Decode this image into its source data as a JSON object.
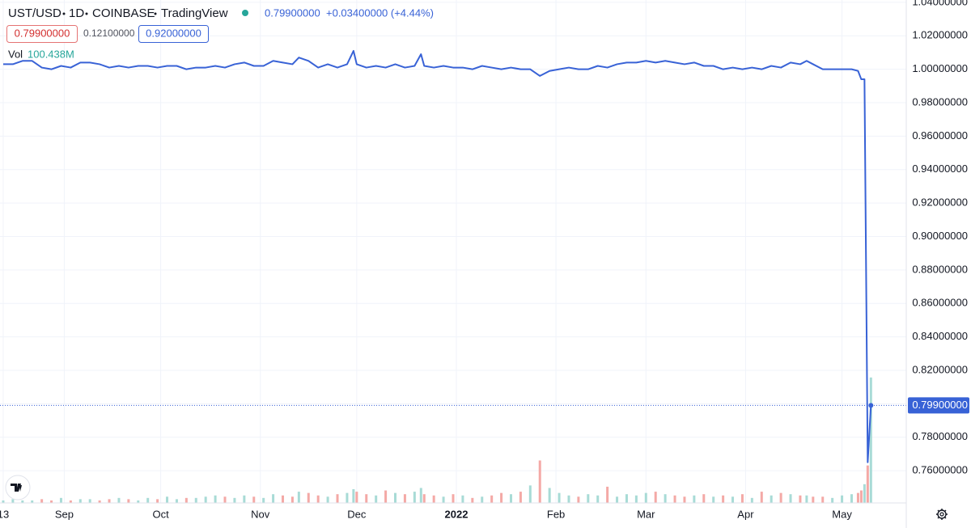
{
  "chart_data": {
    "type": "line",
    "interval": "1D",
    "exchange": "COINBASE",
    "source": "TradingView",
    "last_price": "0.79900000",
    "change": "+0.03400000 (+4.44%)",
    "low_label": "0.79900000",
    "range_label": "0.12100000",
    "high_label": "0.92000000",
    "volume_label": "100.438M",
    "price_line": {
      "value": 0.799,
      "label": "0.79900000"
    },
    "xlim": [
      -1,
      281
    ],
    "xticks": [
      {
        "value": 0,
        "label": "13"
      },
      {
        "value": 19,
        "label": "Sep"
      },
      {
        "value": 49,
        "label": "Oct"
      },
      {
        "value": 80,
        "label": "Nov"
      },
      {
        "value": 110,
        "label": "Dec"
      },
      {
        "value": 141,
        "label": "2022"
      },
      {
        "value": 172,
        "label": "Feb"
      },
      {
        "value": 200,
        "label": "Mar"
      },
      {
        "value": 231,
        "label": "Apr"
      },
      {
        "value": 261,
        "label": "May"
      }
    ],
    "ylim": [
      0.7407,
      1.0414
    ],
    "yticks": [
      {
        "value": 0.76,
        "label": "0.76000000"
      },
      {
        "value": 0.78,
        "label": "0.78000000"
      },
      {
        "value": 0.8,
        "label": "0.80000000"
      },
      {
        "value": 0.82,
        "label": "0.82000000"
      },
      {
        "value": 0.84,
        "label": "0.84000000"
      },
      {
        "value": 0.86,
        "label": "0.86000000"
      },
      {
        "value": 0.88,
        "label": "0.88000000"
      },
      {
        "value": 0.9,
        "label": "0.90000000"
      },
      {
        "value": 0.92,
        "label": "0.92000000"
      },
      {
        "value": 0.94,
        "label": "0.94000000"
      },
      {
        "value": 0.96,
        "label": "0.96000000"
      },
      {
        "value": 0.98,
        "label": "0.98000000"
      },
      {
        "value": 1.0,
        "label": "1.00000000"
      },
      {
        "value": 1.02,
        "label": "1.02000000"
      },
      {
        "value": 1.04,
        "label": "1.04000000"
      }
    ],
    "volume_ylim": [
      0,
      134000000
    ],
    "grid": true,
    "up_color": "#a8dbd6",
    "down_color": "#f4a9a6",
    "x": [
      0,
      3,
      6,
      9,
      12,
      15,
      18,
      21,
      24,
      27,
      30,
      33,
      36,
      39,
      42,
      45,
      48,
      51,
      54,
      57,
      60,
      63,
      66,
      69,
      72,
      75,
      78,
      81,
      84,
      87,
      90,
      92,
      95,
      98,
      101,
      104,
      107,
      109,
      110,
      113,
      116,
      119,
      122,
      125,
      128,
      130,
      131,
      134,
      137,
      140,
      143,
      146,
      149,
      152,
      155,
      158,
      161,
      164,
      167,
      170,
      173,
      176,
      179,
      182,
      185,
      188,
      191,
      194,
      197,
      200,
      203,
      206,
      209,
      212,
      215,
      218,
      221,
      224,
      227,
      230,
      233,
      236,
      239,
      242,
      245,
      248,
      250,
      252,
      255,
      258,
      261,
      264,
      266,
      267,
      268,
      269,
      270
    ],
    "series": [
      {
        "name": "UST/USD",
        "color": "#3862d6",
        "values": [
          1.003,
          1.003,
          1.005,
          1.005,
          1.001,
          1.0,
          1.002,
          1.001,
          1.004,
          1.004,
          1.003,
          1.001,
          1.002,
          1.001,
          1.002,
          1.002,
          1.001,
          1.002,
          1.002,
          1.0,
          1.001,
          1.001,
          1.002,
          1.001,
          1.003,
          1.004,
          1.002,
          1.002,
          1.005,
          1.004,
          1.003,
          1.007,
          1.005,
          1.001,
          1.003,
          1.001,
          1.003,
          1.011,
          1.003,
          1.001,
          1.002,
          1.001,
          1.003,
          1.001,
          1.002,
          1.009,
          1.002,
          1.001,
          1.002,
          1.001,
          1.001,
          1.0,
          1.002,
          1.001,
          1.0,
          1.001,
          1.0,
          1.0,
          0.996,
          0.999,
          1.0,
          1.001,
          1.0,
          1.0,
          1.002,
          1.001,
          1.003,
          1.004,
          1.004,
          1.005,
          1.004,
          1.005,
          1.004,
          1.003,
          1.004,
          1.002,
          1.002,
          1.0,
          1.001,
          1.0,
          1.001,
          1.0,
          1.002,
          1.001,
          1.004,
          1.003,
          1.005,
          1.003,
          1.0,
          1.0,
          1.0,
          1.0,
          0.999,
          0.994,
          0.994,
          0.765,
          0.799
        ]
      },
      {
        "name": "Vol",
        "color": "#26a69a",
        "values": [
          2000000,
          3000000,
          2000000,
          2000000,
          3000000,
          2000000,
          4000000,
          2000000,
          3000000,
          3000000,
          2000000,
          3000000,
          4000000,
          3000000,
          2000000,
          4000000,
          3000000,
          5000000,
          3000000,
          4000000,
          4000000,
          5000000,
          6000000,
          5000000,
          4000000,
          6000000,
          5000000,
          4000000,
          7000000,
          6000000,
          5000000,
          9000000,
          8000000,
          6000000,
          5000000,
          7000000,
          8000000,
          11000000,
          9000000,
          7000000,
          6000000,
          10000000,
          8000000,
          7000000,
          9000000,
          12000000,
          7000000,
          6000000,
          5000000,
          7000000,
          6000000,
          4000000,
          5000000,
          6000000,
          8000000,
          7000000,
          9000000,
          14000000,
          34000000,
          12000000,
          8000000,
          6000000,
          5000000,
          7000000,
          6000000,
          13000000,
          5000000,
          7000000,
          6000000,
          8000000,
          9000000,
          7000000,
          6000000,
          5000000,
          6000000,
          7000000,
          5000000,
          6000000,
          5000000,
          7000000,
          4000000,
          9000000,
          6000000,
          8000000,
          7000000,
          6000000,
          6000000,
          5000000,
          5000000,
          4000000,
          6000000,
          7000000,
          8000000,
          10000000,
          15000000,
          30000000,
          100438000
        ]
      }
    ]
  }
}
